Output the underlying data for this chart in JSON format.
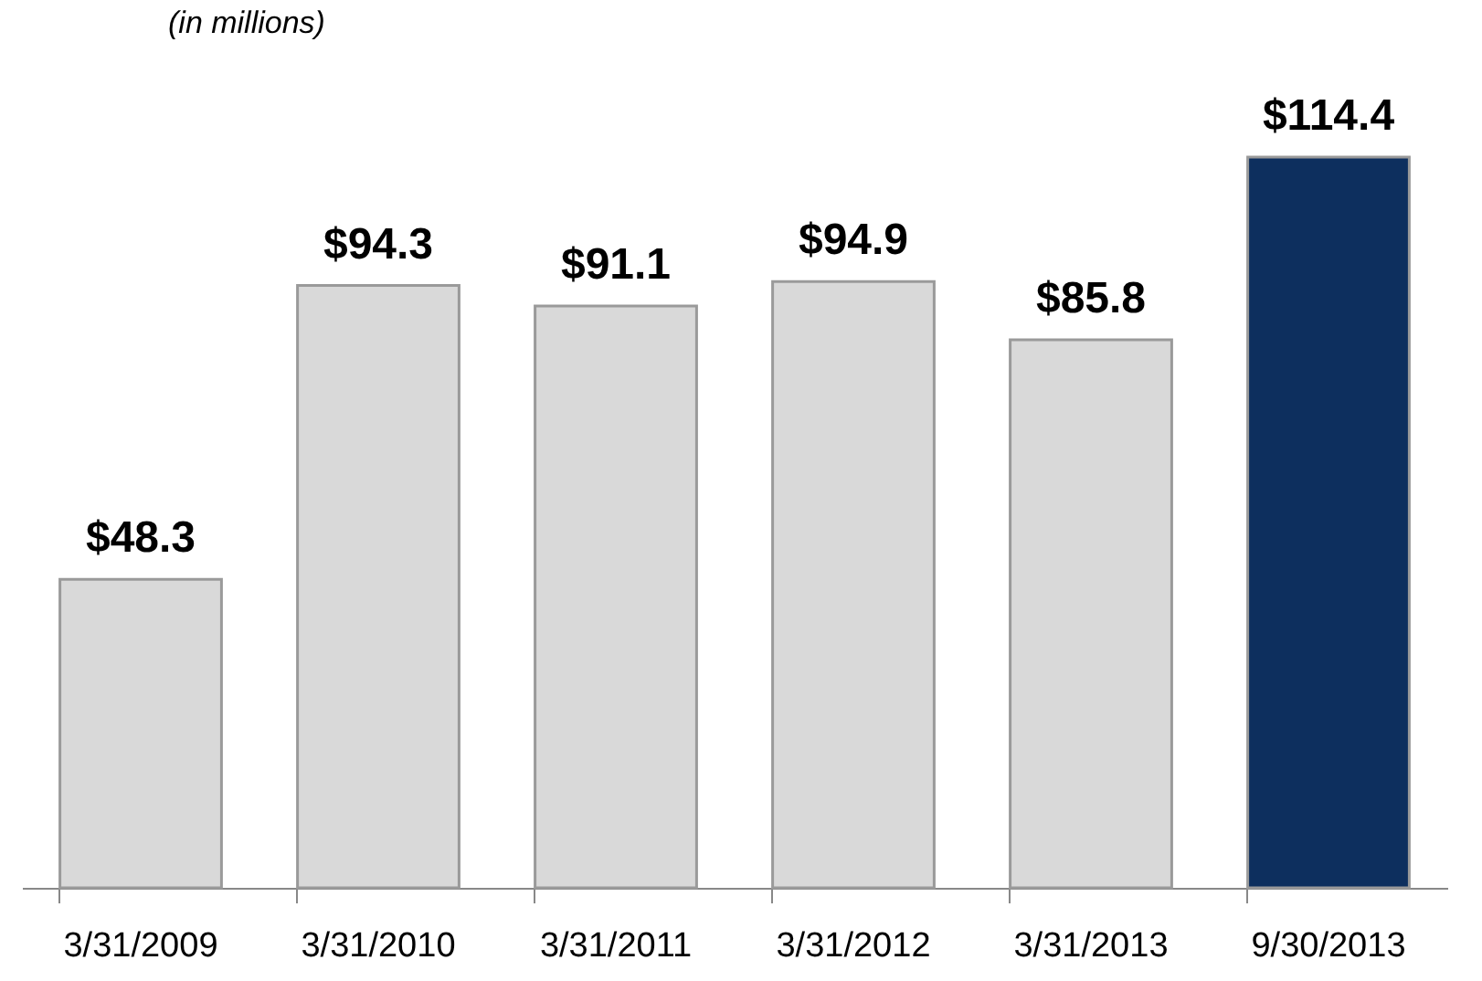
{
  "chart_data": {
    "type": "bar",
    "annotations": [
      "(in millions)"
    ],
    "categories": [
      "3/31/2009",
      "3/31/2010",
      "3/31/2011",
      "3/31/2012",
      "3/31/2013",
      "9/30/2013"
    ],
    "values": [
      48.3,
      94.3,
      91.1,
      94.9,
      85.8,
      114.4
    ],
    "colors": [
      "#d9d9d9",
      "#d9d9d9",
      "#d9d9d9",
      "#d9d9d9",
      "#d9d9d9",
      "#0d2f5e"
    ],
    "value_labels": [
      "$48.3",
      "$94.3",
      "$91.1",
      "$94.9",
      "$85.8",
      "$114.4"
    ]
  }
}
